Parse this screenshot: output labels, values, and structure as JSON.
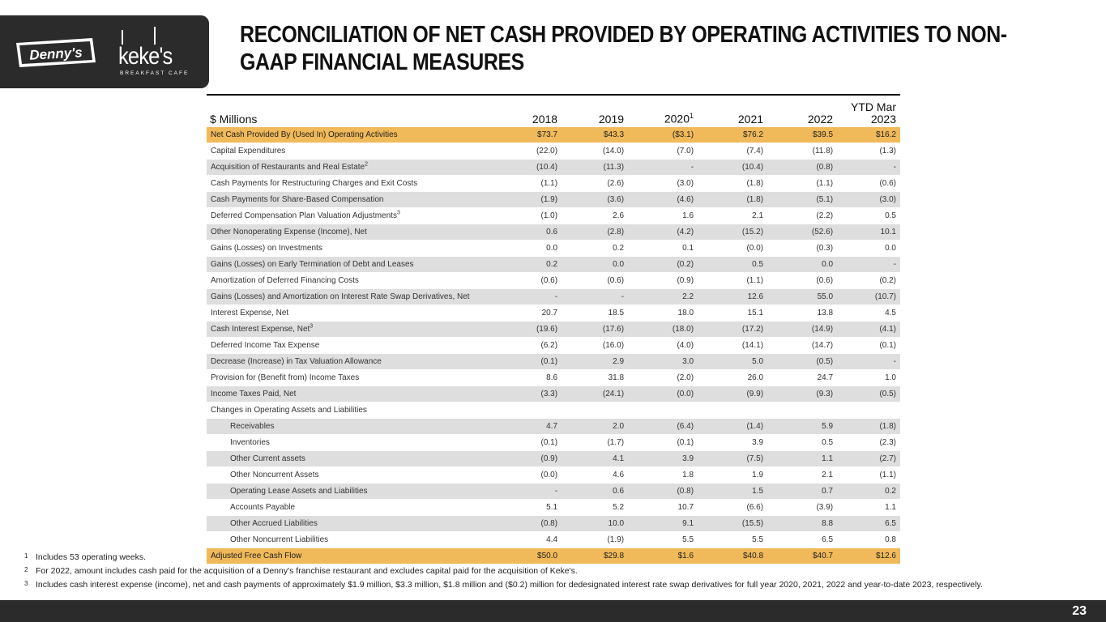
{
  "brand": {
    "logo1_text": "Denny's",
    "logo2_word": "keke's",
    "logo2_sub": "BREAKFAST CAFE"
  },
  "title": "RECONCILIATION OF NET CASH PROVIDED BY OPERATING ACTIVITIES TO NON-GAAP FINANCIAL MEASURES",
  "table": {
    "label_header": "$ Millions",
    "columns": [
      "2018",
      "2019",
      "2020",
      "2021",
      "2022",
      "YTD Mar 2023"
    ],
    "column_2020_sup": "1",
    "rows": [
      {
        "label": "Net Cash Provided By (Used In) Operating Activities",
        "values": [
          "$73.7",
          "$43.3",
          "($3.1)",
          "$76.2",
          "$39.5",
          "$16.2"
        ]
      },
      {
        "label": "Capital Expenditures",
        "values": [
          "(22.0)",
          "(14.0)",
          "(7.0)",
          "(7.4)",
          "(11.8)",
          "(1.3)"
        ]
      },
      {
        "label": "Acquisition of Restaurants and Real Estate",
        "sup": "2",
        "values": [
          "(10.4)",
          "(11.3)",
          "-",
          "(10.4)",
          "(0.8)",
          "-"
        ]
      },
      {
        "label": "Cash Payments for Restructuring Charges and Exit Costs",
        "values": [
          "(1.1)",
          "(2.6)",
          "(3.0)",
          "(1.8)",
          "(1.1)",
          "(0.6)"
        ]
      },
      {
        "label": "Cash Payments for Share-Based Compensation",
        "values": [
          "(1.9)",
          "(3.6)",
          "(4.6)",
          "(1.8)",
          "(5.1)",
          "(3.0)"
        ]
      },
      {
        "label": "Deferred Compensation Plan Valuation Adjustments",
        "sup": "3",
        "values": [
          "(1.0)",
          "2.6",
          "1.6",
          "2.1",
          "(2.2)",
          "0.5"
        ]
      },
      {
        "label": "Other Nonoperating Expense (Income), Net",
        "values": [
          "0.6",
          "(2.8)",
          "(4.2)",
          "(15.2)",
          "(52.6)",
          "10.1"
        ]
      },
      {
        "label": "Gains (Losses) on Investments",
        "values": [
          "0.0",
          "0.2",
          "0.1",
          "(0.0)",
          "(0.3)",
          "0.0"
        ]
      },
      {
        "label": "Gains (Losses) on Early Termination of Debt and Leases",
        "values": [
          "0.2",
          "0.0",
          "(0.2)",
          "0.5",
          "0.0",
          "-"
        ]
      },
      {
        "label": "Amortization of Deferred Financing Costs",
        "values": [
          "(0.6)",
          "(0.6)",
          "(0.9)",
          "(1.1)",
          "(0.6)",
          "(0.2)"
        ]
      },
      {
        "label": "Gains (Losses) and Amortization on Interest Rate Swap Derivatives, Net",
        "values": [
          "-",
          "-",
          "2.2",
          "12.6",
          "55.0",
          "(10.7)"
        ]
      },
      {
        "label": "Interest Expense, Net",
        "values": [
          "20.7",
          "18.5",
          "18.0",
          "15.1",
          "13.8",
          "4.5"
        ]
      },
      {
        "label": "Cash Interest Expense, Net",
        "sup": "3",
        "values": [
          "(19.6)",
          "(17.6)",
          "(18.0)",
          "(17.2)",
          "(14.9)",
          "(4.1)"
        ]
      },
      {
        "label": "Deferred Income Tax Expense",
        "values": [
          "(6.2)",
          "(16.0)",
          "(4.0)",
          "(14.1)",
          "(14.7)",
          "(0.1)"
        ]
      },
      {
        "label": "Decrease (Increase) in Tax Valuation Allowance",
        "values": [
          "(0.1)",
          "2.9",
          "3.0",
          "5.0",
          "(0.5)",
          "-"
        ]
      },
      {
        "label": "Provision for (Benefit from) Income Taxes",
        "values": [
          "8.6",
          "31.8",
          "(2.0)",
          "26.0",
          "24.7",
          "1.0"
        ]
      },
      {
        "label": "Income Taxes Paid, Net",
        "values": [
          "(3.3)",
          "(24.1)",
          "(0.0)",
          "(9.9)",
          "(9.3)",
          "(0.5)"
        ]
      },
      {
        "label": "Changes in Operating Assets and Liabilities",
        "values": [
          "",
          "",
          "",
          "",
          "",
          ""
        ]
      },
      {
        "label": "Receivables",
        "indent": true,
        "values": [
          "4.7",
          "2.0",
          "(6.4)",
          "(1.4)",
          "5.9",
          "(1.8)"
        ]
      },
      {
        "label": "Inventories",
        "indent": true,
        "values": [
          "(0.1)",
          "(1.7)",
          "(0.1)",
          "3.9",
          "0.5",
          "(2.3)"
        ]
      },
      {
        "label": "Other Current assets",
        "indent": true,
        "values": [
          "(0.9)",
          "4.1",
          "3.9",
          "(7.5)",
          "1.1",
          "(2.7)"
        ]
      },
      {
        "label": "Other Noncurrent Assets",
        "indent": true,
        "values": [
          "(0.0)",
          "4.6",
          "1.8",
          "1.9",
          "2.1",
          "(1.1)"
        ]
      },
      {
        "label": "Operating Lease Assets and Liabilities",
        "indent": true,
        "values": [
          "-",
          "0.6",
          "(0.8)",
          "1.5",
          "0.7",
          "0.2"
        ]
      },
      {
        "label": "Accounts Payable",
        "indent": true,
        "values": [
          "5.1",
          "5.2",
          "10.7",
          "(6.6)",
          "(3.9)",
          "1.1"
        ]
      },
      {
        "label": "Other Accrued Liabilities",
        "indent": true,
        "values": [
          "(0.8)",
          "10.0",
          "9.1",
          "(15.5)",
          "8.8",
          "6.5"
        ]
      },
      {
        "label": "Other Noncurrent Liabilities",
        "indent": true,
        "values": [
          "4.4",
          "(1.9)",
          "5.5",
          "5.5",
          "6.5",
          "0.8"
        ]
      },
      {
        "label": "Adjusted Free Cash Flow",
        "values": [
          "$50.0",
          "$29.8",
          "$1.6",
          "$40.8",
          "$40.7",
          "$12.6"
        ]
      }
    ]
  },
  "footnotes": [
    {
      "mark": "1",
      "text": "Includes 53 operating weeks."
    },
    {
      "mark": "2",
      "text": "For 2022, amount includes cash paid for the acquisition of a Denny's franchise restaurant and excludes capital paid for the acquisition of Keke's."
    },
    {
      "mark": "3",
      "text": "Includes cash interest expense (income), net and cash payments of approximately $1.9 million, $3.3 million, $1.8 million and ($0.2) million for dedesignated interest rate swap derivatives for full year 2020, 2021, 2022 and year-to-date 2023, respectively."
    }
  ],
  "page_number": "23",
  "colors": {
    "highlight_row": "#f0b959",
    "alt_row": "#dedede",
    "dark_bar": "#2b2b2b"
  }
}
